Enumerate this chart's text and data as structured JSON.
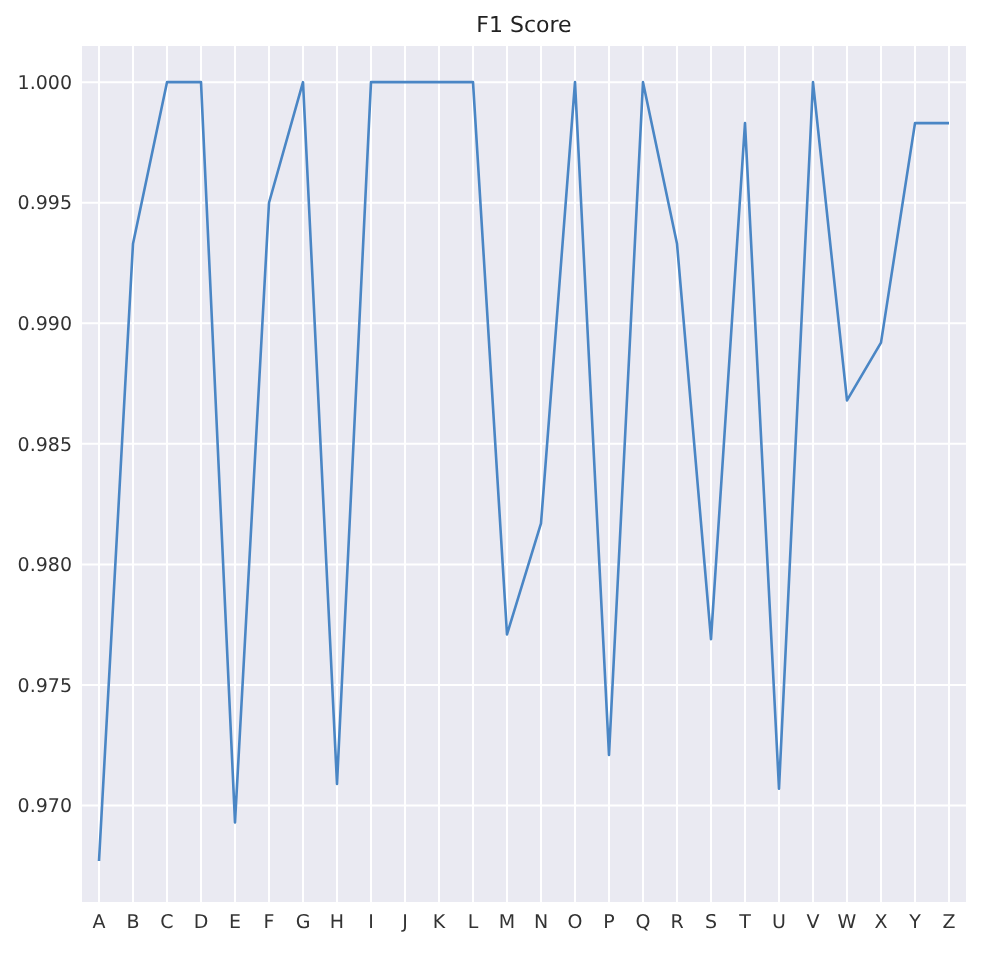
{
  "chart_data": {
    "type": "line",
    "title": "F1 Score",
    "categories": [
      "A",
      "B",
      "C",
      "D",
      "E",
      "F",
      "G",
      "H",
      "I",
      "J",
      "K",
      "L",
      "M",
      "N",
      "O",
      "P",
      "Q",
      "R",
      "S",
      "T",
      "U",
      "V",
      "W",
      "X",
      "Y",
      "Z"
    ],
    "series": [
      {
        "color": "#4a86c5",
        "values": [
          0.9677,
          0.9933,
          1.0,
          1.0,
          0.9693,
          0.995,
          1.0,
          0.9709,
          1.0,
          1.0,
          1.0,
          1.0,
          0.9771,
          0.9817,
          1.0,
          0.9721,
          1.0,
          0.9933,
          0.9769,
          0.9983,
          0.9707,
          1.0,
          0.9868,
          0.9892,
          0.9983,
          0.9983
        ]
      }
    ],
    "ylim": [
      0.966,
      1.0015
    ],
    "yticks": [
      {
        "value": 0.97,
        "label": "0.970"
      },
      {
        "value": 0.975,
        "label": "0.975"
      },
      {
        "value": 0.98,
        "label": "0.980"
      },
      {
        "value": 0.985,
        "label": "0.985"
      },
      {
        "value": 0.99,
        "label": "0.990"
      },
      {
        "value": 0.995,
        "label": "0.995"
      },
      {
        "value": 1.0,
        "label": "1.000"
      }
    ],
    "grid": true,
    "marker": "none",
    "line_style": "solid"
  }
}
